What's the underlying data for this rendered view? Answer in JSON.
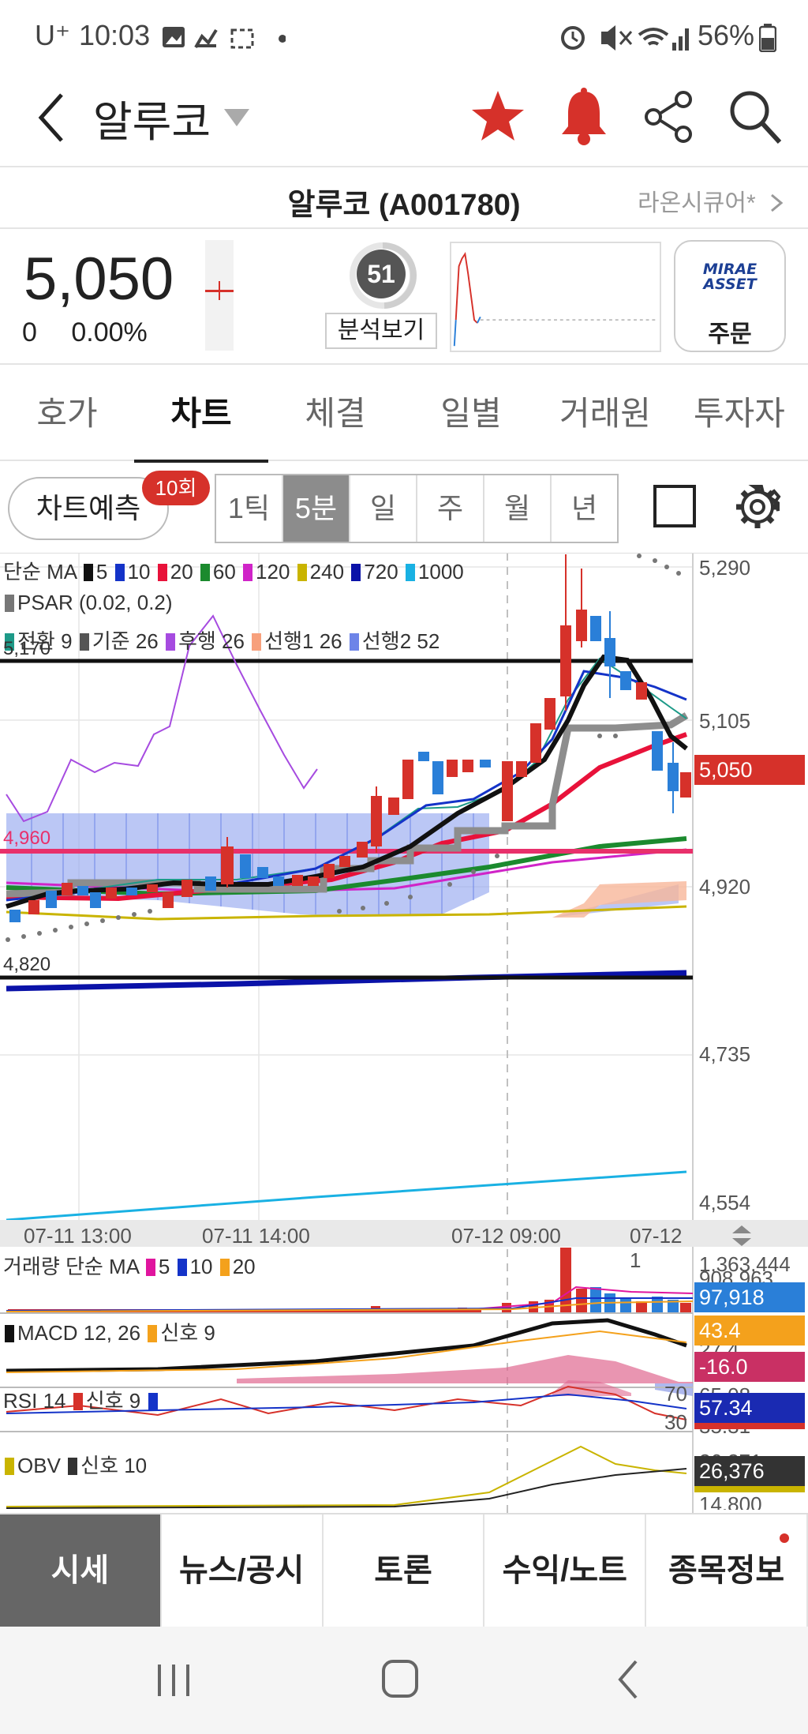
{
  "status_bar": {
    "carrier": "U⁺",
    "time": "10:03",
    "battery": "56%"
  },
  "header": {
    "title": "알루코"
  },
  "stock": {
    "name_code": "알루코 (A001780)",
    "related": "라온시큐어*"
  },
  "quote": {
    "price": "5,050",
    "change": "0",
    "change_pct": "0.00%",
    "score": "51",
    "analyze_label": "분석보기",
    "broker_line1": "MIRAE",
    "broker_line2": "ASSET",
    "order_label": "주문"
  },
  "tabs": [
    "호가",
    "차트",
    "체결",
    "일별",
    "거래원",
    "투자자"
  ],
  "active_tab": "차트",
  "toolbar": {
    "predict_label": "차트예측",
    "predict_badge": "10회",
    "periods": [
      "1틱",
      "5분",
      "일",
      "주",
      "월",
      "년"
    ],
    "selected_period": "5분"
  },
  "chart": {
    "legend_ma": {
      "label": "단순 MA",
      "items": [
        "5",
        "10",
        "20",
        "60",
        "120",
        "240",
        "720",
        "1000"
      ]
    },
    "legend_psar": "PSAR (0.02, 0.2)",
    "legend_ichimoku": [
      "전환 9",
      "기준 26",
      "후행 26",
      "선행1 26",
      "선행2 52"
    ],
    "y_labels": [
      "5,290",
      "5,105",
      "4,920",
      "4,735",
      "4,554"
    ],
    "price_tag": "5,050",
    "hline_upper": "5,170",
    "hline_mid": "4,960",
    "hline_lower": "4,820",
    "x_labels": [
      "07-11 13:00",
      "07-11 14:00",
      "07-12 09:00",
      "07-12 1"
    ],
    "volume": {
      "label": "거래량 단순 MA",
      "items": [
        "5",
        "10",
        "20"
      ],
      "max_label": "1,363,444",
      "second_label": "908,963",
      "value_tag": "97,918"
    },
    "macd": {
      "label": "MACD 12, 26",
      "signal_label": "신호 9",
      "tag1": "43.4",
      "tag2": "-16.0",
      "cut_label": "27.4"
    },
    "rsi": {
      "label": "RSI 14",
      "signal_label": "신호 9",
      "level_70": "70",
      "level_30": "30",
      "tag": "57.34",
      "cut_upper": "65.08",
      "cut_lower": "35.31"
    },
    "obv": {
      "label": "OBV",
      "signal_label": "신호 10",
      "tag": "26,376",
      "cut_upper": "26,371",
      "cut_mid": "14,800"
    }
  },
  "bottom_nav": [
    "시세",
    "뉴스/공시",
    "토론",
    "수익/노트",
    "종목정보"
  ],
  "bottom_nav_selected": "시세",
  "colors": {
    "up": "#d6312a",
    "down": "#2a7fd8",
    "accent_red": "#d6312a"
  },
  "icons": [
    "back-arrow-icon",
    "dropdown-caret-icon",
    "star-icon",
    "bell-icon",
    "share-icon",
    "search-icon",
    "gear-icon",
    "square-icon",
    "chevron-right-icon",
    "recents-icon",
    "home-icon",
    "system-back-icon"
  ]
}
